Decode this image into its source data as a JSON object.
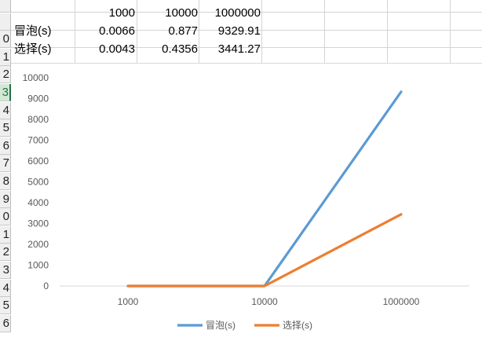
{
  "sheet": {
    "row_numbers": [
      "",
      "",
      "0",
      "1",
      "2",
      "3",
      "4",
      "5",
      "6",
      "7",
      "8",
      "9",
      "0",
      "1",
      "2",
      "3",
      "4",
      "5",
      "6"
    ],
    "active_row_index": 5,
    "table": {
      "header": [
        "1000",
        "10000",
        "1000000"
      ],
      "rows": [
        {
          "label": "冒泡(s)",
          "values": [
            "0.0066",
            "0.877",
            "9329.91"
          ]
        },
        {
          "label": "选择(s)",
          "values": [
            "0.0043",
            "0.4356",
            "3441.27"
          ]
        }
      ]
    }
  },
  "chart_data": {
    "type": "line",
    "categories": [
      "1000",
      "10000",
      "1000000"
    ],
    "series": [
      {
        "name": "冒泡(s)",
        "values": [
          0.0066,
          0.877,
          9329.91
        ],
        "color": "#5b9bd5"
      },
      {
        "name": "选择(s)",
        "values": [
          0.0043,
          0.4356,
          3441.27
        ],
        "color": "#ed7d31"
      }
    ],
    "ylim": [
      0,
      10000
    ],
    "yticks": [
      "0",
      "1000",
      "2000",
      "3000",
      "4000",
      "5000",
      "6000",
      "7000",
      "8000",
      "9000",
      "10000"
    ],
    "legend_position": "bottom",
    "grid": false
  }
}
